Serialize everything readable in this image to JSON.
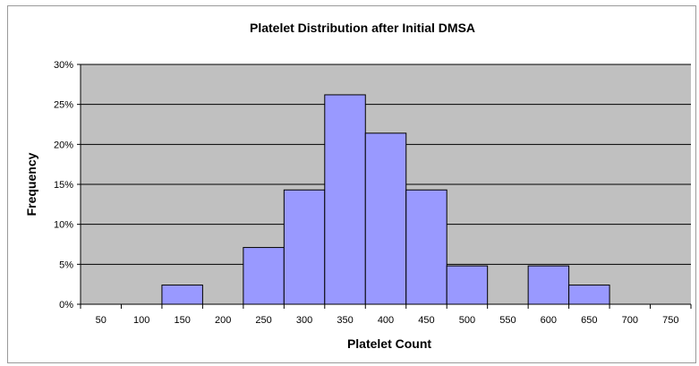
{
  "chart_data": {
    "type": "bar",
    "title": "Platelet Distribution after Initial DMSA",
    "xlabel": "Platelet Count",
    "ylabel": "Frequency",
    "categories": [
      "50",
      "100",
      "150",
      "200",
      "250",
      "300",
      "350",
      "400",
      "450",
      "500",
      "550",
      "600",
      "650",
      "700",
      "750"
    ],
    "values": [
      0,
      0,
      2.4,
      0,
      7.1,
      14.3,
      26.2,
      21.4,
      14.3,
      4.8,
      0,
      4.8,
      2.4,
      0,
      0
    ],
    "ylim": [
      0,
      30
    ],
    "yticks": [
      "0%",
      "5%",
      "10%",
      "15%",
      "20%",
      "25%",
      "30%"
    ],
    "grid": true,
    "legend": "none",
    "colors": {
      "plot_bg": "#c0c0c0",
      "bar_fill": "#9999ff",
      "bar_stroke": "#000000",
      "gridline": "#000000"
    }
  }
}
